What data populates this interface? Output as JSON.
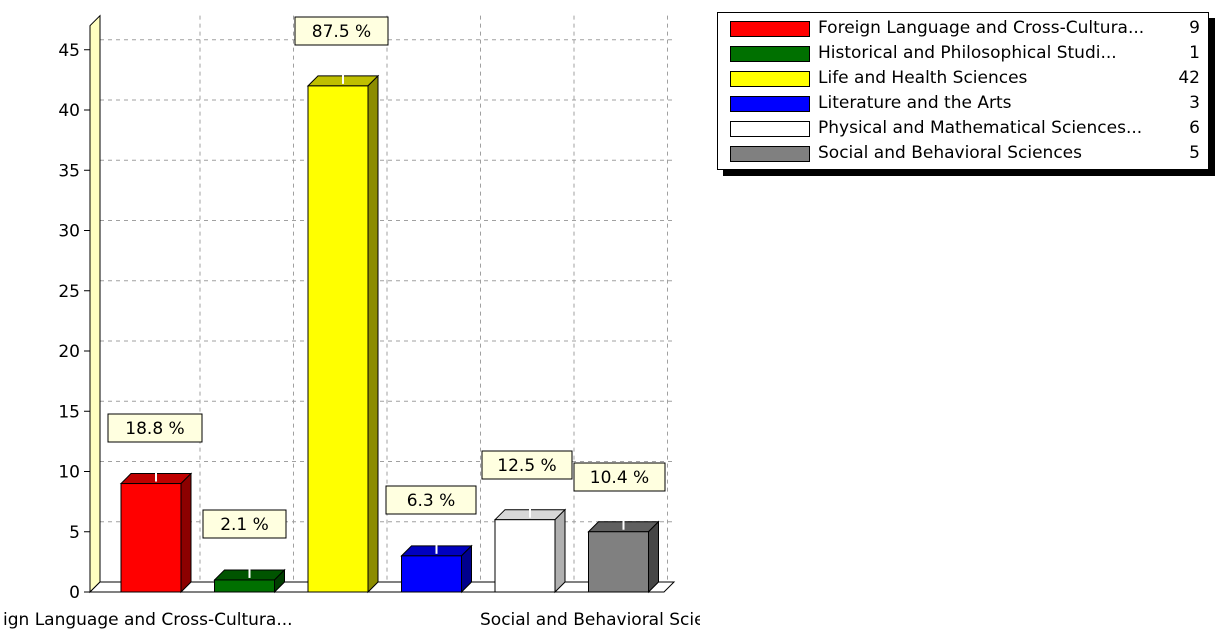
{
  "chart_data": {
    "type": "bar",
    "categories": [
      "Foreign Language and Cross-Cultura...",
      "Historical and Philosophical Studi...",
      "Life and Health Sciences",
      "Literature and the Arts",
      "Physical and Mathematical Sciences...",
      "Social and Behavioral Sciences"
    ],
    "values": [
      9,
      1,
      42,
      3,
      6,
      5
    ],
    "percent_labels": [
      "18.8 %",
      "2.1 %",
      "87.5 %",
      "6.3 %",
      "12.5 %",
      "10.4 %"
    ],
    "colors": [
      "#ff0000",
      "#007000",
      "#ffff00",
      "#0000ff",
      "#ffffff",
      "#808080"
    ],
    "x_tick_labels": [
      "ign Language and Cross-Cultura...",
      "Social and Behavioral Sciences"
    ],
    "y_ticks": [
      0,
      5,
      10,
      15,
      20,
      25,
      30,
      35,
      40,
      45
    ],
    "ylim": [
      0,
      47
    ],
    "grid": true,
    "legend_position": "top-right"
  },
  "legend": {
    "items": [
      {
        "label": "Foreign Language and Cross-Cultura...",
        "count": "9"
      },
      {
        "label": "Historical and Philosophical Studi...",
        "count": "1"
      },
      {
        "label": "Life and Health Sciences",
        "count": "42"
      },
      {
        "label": "Literature and the Arts",
        "count": "3"
      },
      {
        "label": "Physical and Mathematical Sciences...",
        "count": "6"
      },
      {
        "label": "Social and Behavioral Sciences",
        "count": "5"
      }
    ]
  }
}
